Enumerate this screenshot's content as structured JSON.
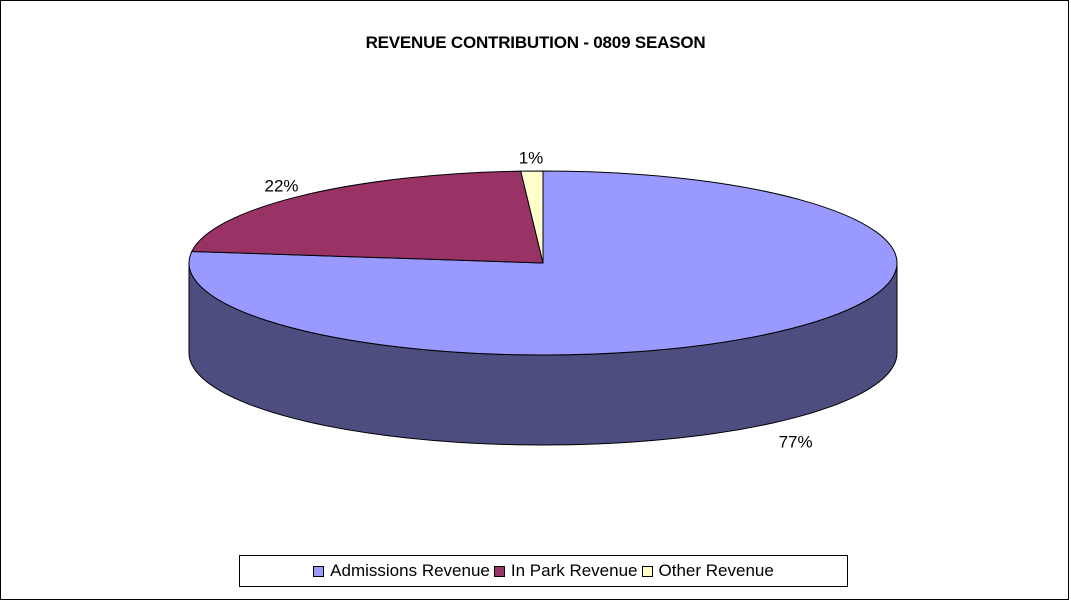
{
  "chart_data": {
    "type": "pie",
    "title": "REVENUE CONTRIBUTION - 0809 SEASON",
    "categories": [
      "Admissions Revenue",
      "In Park Revenue",
      "Other Revenue"
    ],
    "values": [
      77,
      22,
      1
    ],
    "data_labels": [
      "77%",
      "22%",
      "1%"
    ],
    "colors": [
      "#9999FF",
      "#993366",
      "#FFFFCC"
    ],
    "side_colors": [
      "#4D4D80",
      "#4D1A33",
      "#808066"
    ],
    "three_d": true,
    "legend_position": "bottom"
  }
}
